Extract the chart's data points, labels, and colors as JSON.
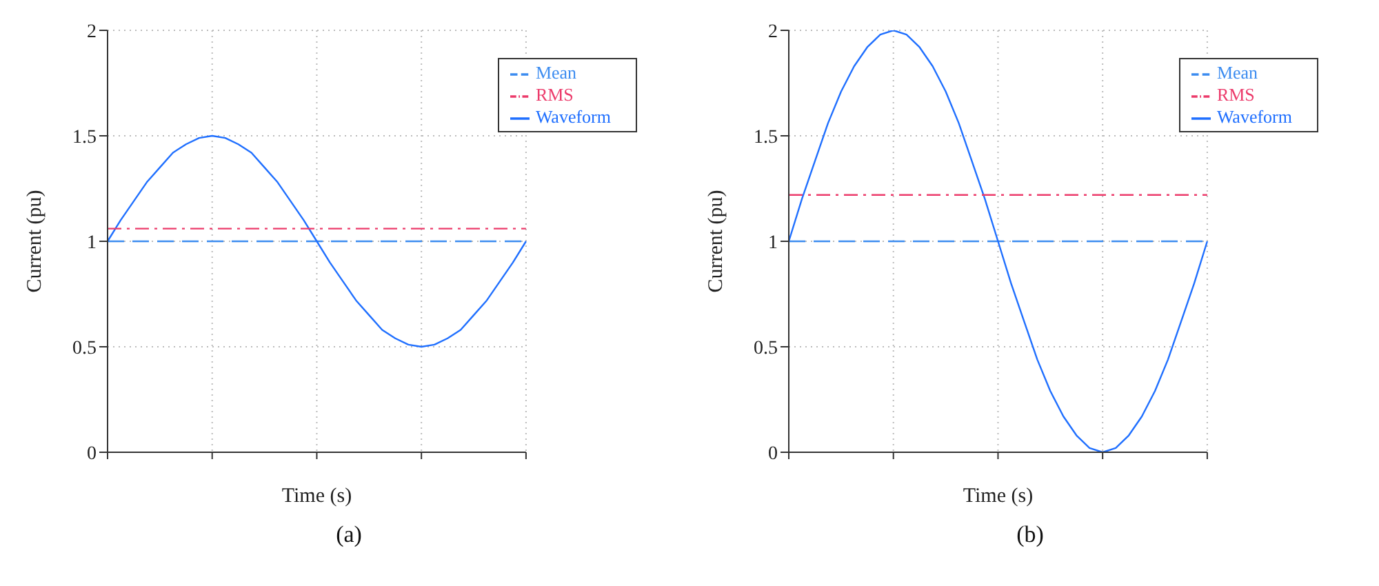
{
  "chart_data": [
    {
      "type": "line",
      "xlabel": "Time (s)",
      "ylabel": "Current (pu)",
      "annotations": [
        "(a)"
      ],
      "categories": [
        null,
        null,
        null,
        null,
        null,
        null,
        null,
        null,
        null,
        null,
        null,
        null,
        null,
        null,
        null,
        null,
        null,
        null,
        null,
        null,
        null,
        null,
        null,
        null,
        null,
        null,
        null,
        null,
        null,
        null,
        null,
        null,
        null
      ],
      "ylim": [
        0,
        2
      ],
      "yticks": [
        0,
        0.5,
        1,
        1.5,
        2
      ],
      "grid": true,
      "legend": "top right",
      "tick_labels": "y",
      "marker": "none",
      "series": [
        {
          "name": "Mean",
          "color": "#3c8cf0",
          "line_style": "dashed",
          "values": [
            1,
            1,
            1,
            1,
            1,
            1,
            1,
            1,
            1,
            1,
            1,
            1,
            1,
            1,
            1,
            1,
            1,
            1,
            1,
            1,
            1,
            1,
            1,
            1,
            1,
            1,
            1,
            1,
            1,
            1,
            1,
            1,
            1
          ]
        },
        {
          "name": "Waveform",
          "color": "#1f6fff",
          "line_style": "solid",
          "values": [
            1,
            1.1,
            1.19,
            1.28,
            1.35,
            1.42,
            1.46,
            1.49,
            1.5,
            1.49,
            1.46,
            1.42,
            1.35,
            1.28,
            1.19,
            1.1,
            1,
            0.9,
            0.81,
            0.72,
            0.65,
            0.58,
            0.54,
            0.51,
            0.5,
            0.51,
            0.54,
            0.58,
            0.65,
            0.72,
            0.81,
            0.9,
            1
          ]
        },
        {
          "name": "RMS",
          "color": "#ec3b6b",
          "line_style": "dashdot",
          "values": [
            1.06,
            1.06,
            1.06,
            1.06,
            1.06,
            1.06,
            1.06,
            1.06,
            1.06,
            1.06,
            1.06,
            1.06,
            1.06,
            1.06,
            1.06,
            1.06,
            1.06,
            1.06,
            1.06,
            1.06,
            1.06,
            1.06,
            1.06,
            1.06,
            1.06,
            1.06,
            1.06,
            1.06,
            1.06,
            1.06,
            1.06,
            1.06,
            1.06
          ]
        }
      ]
    },
    {
      "type": "line",
      "xlabel": "Time (s)",
      "ylabel": "Current (pu)",
      "annotations": [
        "(b)"
      ],
      "categories": [
        null,
        null,
        null,
        null,
        null,
        null,
        null,
        null,
        null,
        null,
        null,
        null,
        null,
        null,
        null,
        null,
        null,
        null,
        null,
        null,
        null,
        null,
        null,
        null,
        null,
        null,
        null,
        null,
        null,
        null,
        null,
        null,
        null
      ],
      "ylim": [
        0,
        2
      ],
      "yticks": [
        0,
        0.5,
        1,
        1.5,
        2
      ],
      "grid": true,
      "legend": "top right",
      "tick_labels": "y",
      "marker": "none",
      "series": [
        {
          "name": "Mean",
          "color": "#3c8cf0",
          "line_style": "dashed",
          "values": [
            1,
            1,
            1,
            1,
            1,
            1,
            1,
            1,
            1,
            1,
            1,
            1,
            1,
            1,
            1,
            1,
            1,
            1,
            1,
            1,
            1,
            1,
            1,
            1,
            1,
            1,
            1,
            1,
            1,
            1,
            1,
            1,
            1
          ]
        },
        {
          "name": "Waveform",
          "color": "#1f6fff",
          "line_style": "solid",
          "values": [
            1,
            1.2,
            1.38,
            1.56,
            1.71,
            1.83,
            1.92,
            1.98,
            2,
            1.98,
            1.92,
            1.83,
            1.71,
            1.56,
            1.38,
            1.2,
            1,
            0.8,
            0.62,
            0.44,
            0.29,
            0.17,
            0.08,
            0.02,
            0,
            0.02,
            0.08,
            0.17,
            0.29,
            0.44,
            0.62,
            0.8,
            1
          ]
        },
        {
          "name": "RMS",
          "color": "#ec3b6b",
          "line_style": "dashdot",
          "values": [
            1.22,
            1.22,
            1.22,
            1.22,
            1.22,
            1.22,
            1.22,
            1.22,
            1.22,
            1.22,
            1.22,
            1.22,
            1.22,
            1.22,
            1.22,
            1.22,
            1.22,
            1.22,
            1.22,
            1.22,
            1.22,
            1.22,
            1.22,
            1.22,
            1.22,
            1.22,
            1.22,
            1.22,
            1.22,
            1.22,
            1.22,
            1.22,
            1.22
          ]
        }
      ]
    }
  ]
}
